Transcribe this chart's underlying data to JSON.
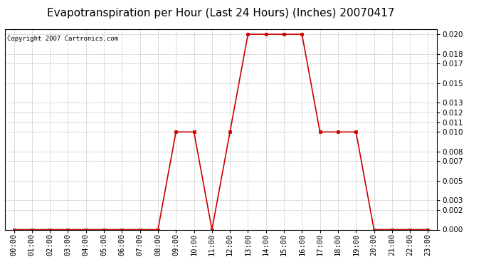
{
  "title": "Evapotranspiration per Hour (Last 24 Hours) (Inches) 20070417",
  "copyright": "Copyright 2007 Cartronics.com",
  "hours": [
    "00:00",
    "01:00",
    "02:00",
    "03:00",
    "04:00",
    "05:00",
    "06:00",
    "07:00",
    "08:00",
    "09:00",
    "10:00",
    "11:00",
    "12:00",
    "13:00",
    "14:00",
    "15:00",
    "16:00",
    "17:00",
    "18:00",
    "19:00",
    "20:00",
    "21:00",
    "22:00",
    "23:00"
  ],
  "values": [
    0.0,
    0.0,
    0.0,
    0.0,
    0.0,
    0.0,
    0.0,
    0.0,
    0.0,
    0.01,
    0.01,
    0.0,
    0.01,
    0.02,
    0.02,
    0.02,
    0.02,
    0.01,
    0.01,
    0.01,
    0.0,
    0.0,
    0.0,
    0.0
  ],
  "line_color": "#cc0000",
  "marker": "s",
  "marker_color": "#cc0000",
  "marker_size": 3,
  "background_color": "#ffffff",
  "plot_bg_color": "#ffffff",
  "grid_color": "#bbbbbb",
  "ylim": [
    0.0,
    0.0205
  ],
  "yticks": [
    0.0,
    0.002,
    0.003,
    0.005,
    0.007,
    0.008,
    0.01,
    0.011,
    0.012,
    0.013,
    0.015,
    0.017,
    0.018,
    0.02
  ],
  "title_fontsize": 11,
  "tick_fontsize": 7.5,
  "copyright_fontsize": 6.5
}
